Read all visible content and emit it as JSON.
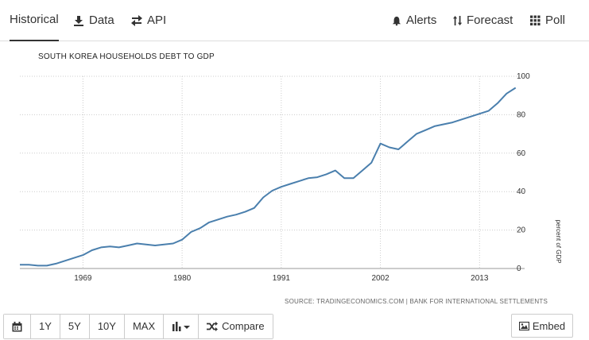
{
  "tabs": {
    "historical": "Historical",
    "data": "Data",
    "api": "API",
    "alerts": "Alerts",
    "forecast": "Forecast",
    "poll": "Poll"
  },
  "source": "SOURCE: TRADINGECONOMICS.COM | BANK FOR INTERNATIONAL SETTLEMENTS",
  "buttons": {
    "calendar_icon": "calendar-icon",
    "r1y": "1Y",
    "r5y": "5Y",
    "r10y": "10Y",
    "max": "MAX",
    "chart_type_icon": "bar-chart-icon",
    "compare": "Compare",
    "embed": "Embed"
  },
  "chart_data": {
    "type": "line",
    "title": "SOUTH KOREA HOUSEHOLDS DEBT TO GDP",
    "ylabel": "percent of GDP",
    "ylim": [
      0,
      100
    ],
    "xlim": [
      1962,
      2018
    ],
    "yticks": [
      0,
      20,
      40,
      60,
      80,
      100
    ],
    "xticks": [
      1969,
      1980,
      1991,
      2002,
      2013
    ],
    "grid": true,
    "color": "#4a7fad",
    "x": [
      1962,
      1963,
      1964,
      1965,
      1966,
      1967,
      1968,
      1969,
      1970,
      1971,
      1972,
      1973,
      1974,
      1975,
      1976,
      1977,
      1978,
      1979,
      1980,
      1981,
      1982,
      1983,
      1984,
      1985,
      1986,
      1987,
      1988,
      1989,
      1990,
      1991,
      1992,
      1993,
      1994,
      1995,
      1996,
      1997,
      1998,
      1999,
      2000,
      2001,
      2002,
      2003,
      2004,
      2005,
      2006,
      2007,
      2008,
      2009,
      2010,
      2011,
      2012,
      2013,
      2014,
      2015,
      2016,
      2017
    ],
    "values": [
      2,
      2,
      1.5,
      1.5,
      2.5,
      4,
      5.5,
      7,
      9.5,
      11,
      11.5,
      11,
      12,
      13,
      12.5,
      12,
      12.5,
      13,
      15,
      19,
      21,
      24,
      25.5,
      27,
      28,
      29.5,
      31.5,
      37,
      40.5,
      42.5,
      44,
      45.5,
      47,
      47.5,
      49,
      51,
      47,
      47,
      51,
      55,
      65,
      63,
      62,
      66,
      70,
      72,
      74,
      75,
      76,
      77.5,
      79,
      80.5,
      82,
      86,
      91,
      94
    ]
  }
}
